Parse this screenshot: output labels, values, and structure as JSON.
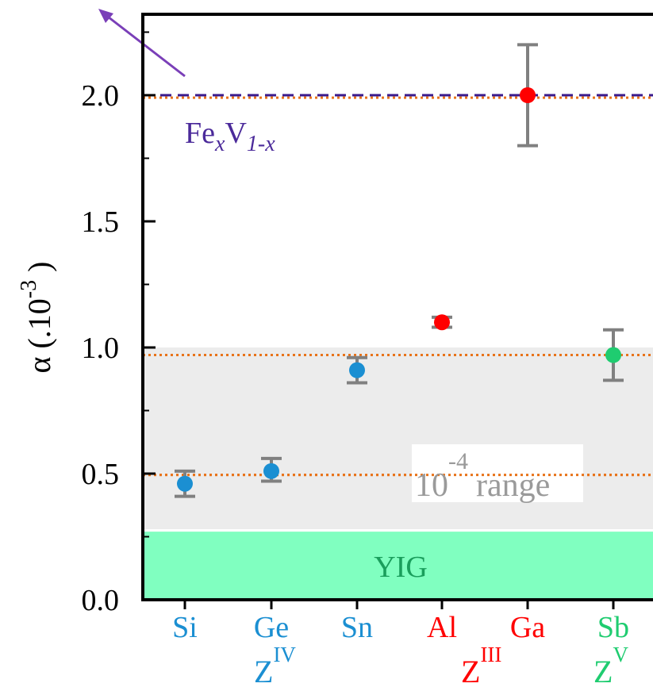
{
  "chart_data": {
    "type": "scatter",
    "ylabel": "α (.10",
    "ylabel_exponent": "-3",
    "ylabel_close": ")",
    "ylim": [
      0,
      2.3
    ],
    "yticks": [
      {
        "value": 0.0,
        "label": "0.0"
      },
      {
        "value": 0.5,
        "label": "0.5"
      },
      {
        "value": 1.0,
        "label": "1.0"
      },
      {
        "value": 1.5,
        "label": "1.5"
      },
      {
        "value": 2.0,
        "label": "2.0"
      }
    ],
    "categories": [
      "Si",
      "Ge",
      "Sn",
      "Al",
      "Ga",
      "Sb"
    ],
    "points": [
      {
        "category": "Si",
        "value": 0.46,
        "err_low": 0.41,
        "err_high": 0.51,
        "color": "#1b8fd2",
        "label_color": "#1b8fd2"
      },
      {
        "category": "Ge",
        "value": 0.51,
        "err_low": 0.47,
        "err_high": 0.56,
        "color": "#1b8fd2",
        "label_color": "#1b8fd2"
      },
      {
        "category": "Sn",
        "value": 0.91,
        "err_low": 0.86,
        "err_high": 0.96,
        "color": "#1b8fd2",
        "label_color": "#1b8fd2"
      },
      {
        "category": "Al",
        "value": 1.1,
        "err_low": 1.08,
        "err_high": 1.12,
        "color": "#ff0000",
        "label_color": "#ff0000"
      },
      {
        "category": "Ga",
        "value": 2.0,
        "err_low": 1.8,
        "err_high": 2.2,
        "color": "#ff0000",
        "label_color": "#ff0000"
      },
      {
        "category": "Sb",
        "value": 0.97,
        "err_low": 0.87,
        "err_high": 1.07,
        "color": "#1fcc70",
        "label_color": "#1fcc70"
      }
    ],
    "groups": [
      {
        "base": "Z",
        "superscript": "IV",
        "between": [
          "Si",
          "Sn"
        ],
        "color": "#1b8fd2"
      },
      {
        "base": "Z",
        "superscript": "III",
        "between": [
          "Al",
          "Ga"
        ],
        "color": "#ff0000"
      },
      {
        "base": "Z",
        "superscript": "V",
        "between": [
          "Sb",
          "Sb"
        ],
        "color": "#1fcc70"
      }
    ],
    "reference_lines": [
      {
        "value": 2.0,
        "style": "dashed",
        "color": "#3a1a8c"
      },
      {
        "value": 1.99,
        "style": "dotted",
        "color": "#e8731a"
      },
      {
        "value": 0.97,
        "style": "dotted",
        "color": "#e8731a"
      },
      {
        "value": 0.495,
        "style": "dotted",
        "color": "#e8731a"
      }
    ],
    "bands": [
      {
        "from": 0.0,
        "to": 0.27,
        "color": "#80ffc0",
        "label": "YIG",
        "label_color": "#1a9e5c"
      },
      {
        "from": 0.28,
        "to": 1.0,
        "color": "#ececec",
        "label": "10",
        "label_exponent": "-4",
        "label_suffix": "range",
        "label_color": "#9a9a9a"
      }
    ],
    "annotation": {
      "base": "Fe",
      "sub1": "x",
      "mid": "V",
      "sub2": "1-x",
      "color": "#4b2a9a"
    },
    "arrow_color": "#7a3fb8",
    "errorbar_color": "#808080"
  }
}
